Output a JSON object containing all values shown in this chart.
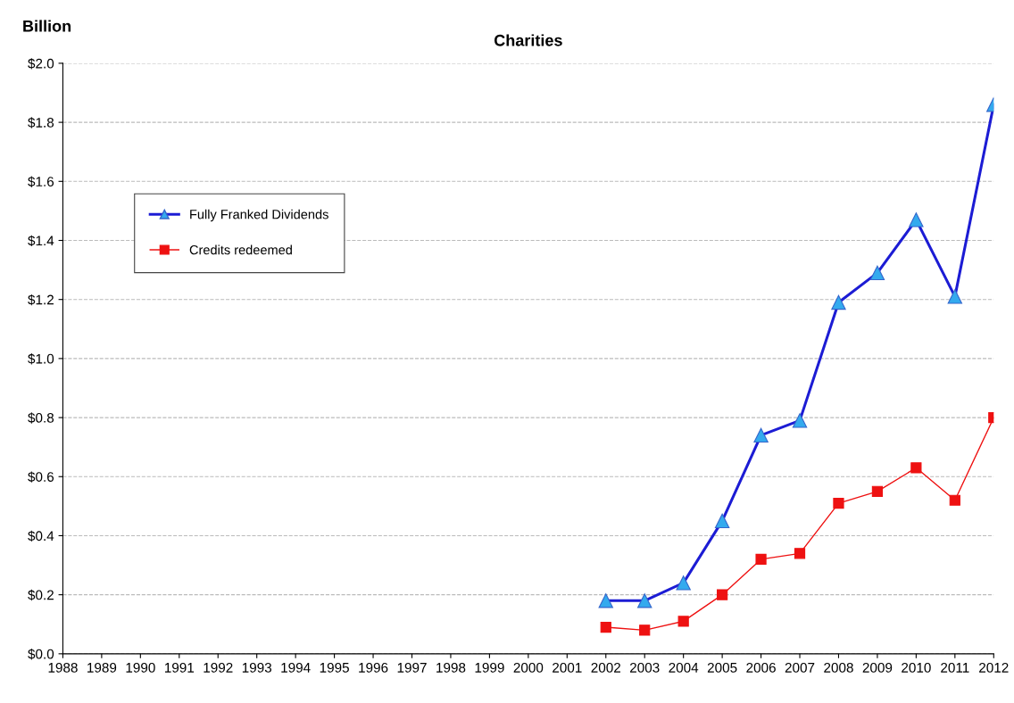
{
  "chart_data": {
    "type": "line",
    "title": "Charities",
    "ylabel": "Billion",
    "categories": [
      "1988",
      "1989",
      "1990",
      "1991",
      "1992",
      "1993",
      "1994",
      "1995",
      "1996",
      "1997",
      "1998",
      "1999",
      "2000",
      "2001",
      "2002",
      "2003",
      "2004",
      "2005",
      "2006",
      "2007",
      "2008",
      "2009",
      "2010",
      "2011",
      "2012"
    ],
    "series": [
      {
        "name": "Fully Franked Dividends",
        "color": "#1c1cd4",
        "marker": "triangle",
        "values": [
          null,
          null,
          null,
          null,
          null,
          null,
          null,
          null,
          null,
          null,
          null,
          null,
          null,
          null,
          0.18,
          0.18,
          0.24,
          0.45,
          0.74,
          0.79,
          1.19,
          1.29,
          1.47,
          1.21,
          1.86
        ]
      },
      {
        "name": "Credits redeemed",
        "color": "#ee1111",
        "marker": "square",
        "values": [
          null,
          null,
          null,
          null,
          null,
          null,
          null,
          null,
          null,
          null,
          null,
          null,
          null,
          null,
          0.09,
          0.08,
          0.11,
          0.2,
          0.32,
          0.34,
          0.51,
          0.55,
          0.63,
          0.52,
          0.8
        ]
      }
    ],
    "ylim": [
      0,
      2.0
    ],
    "yticks": [
      {
        "value": 0,
        "label": "$0.0"
      },
      {
        "value": 0.2,
        "label": "$0.2"
      },
      {
        "value": 0.4,
        "label": "$0.4"
      },
      {
        "value": 0.6,
        "label": "$0.6"
      },
      {
        "value": 0.8,
        "label": "$0.8"
      },
      {
        "value": 1.0,
        "label": "$1.0"
      },
      {
        "value": 1.2,
        "label": "$1.2"
      },
      {
        "value": 1.4,
        "label": "$1.4"
      },
      {
        "value": 1.6,
        "label": "$1.6"
      },
      {
        "value": 1.8,
        "label": "$1.8"
      },
      {
        "value": 2.0,
        "label": "$2.0"
      }
    ],
    "grid": "y",
    "legend": "top left",
    "line_style": "solid"
  }
}
